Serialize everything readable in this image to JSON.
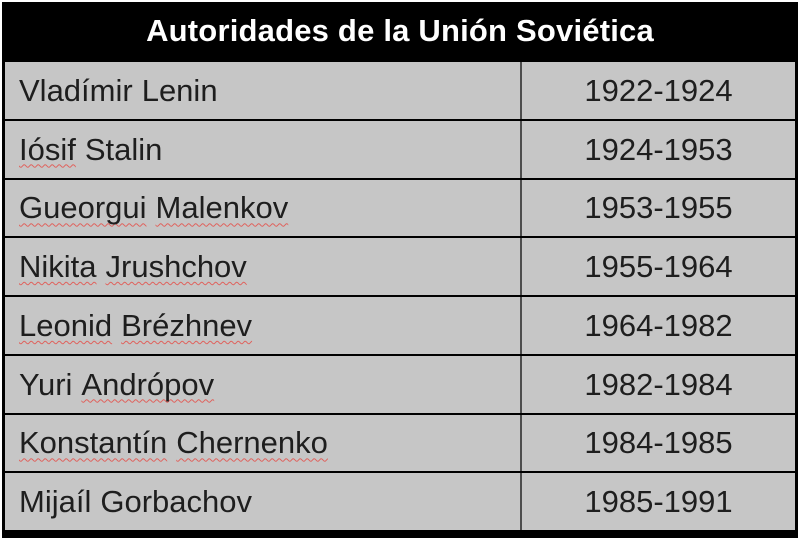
{
  "theme": {
    "page-bg": "#ffffff",
    "table-border": "#000000",
    "header-text": "#ffffff",
    "row-bg": "#c6c6c6",
    "cell-text": "#1e1e1e",
    "divider": "#4d4d4d",
    "squiggle": "#e0615c"
  },
  "table": {
    "title": "Autoridades de la Unión Soviética",
    "rows": [
      {
        "name_words": [
          {
            "text": "Vladímir",
            "misspelled": false
          },
          {
            "text": "Lenin",
            "misspelled": false
          }
        ],
        "years": "1922-1924"
      },
      {
        "name_words": [
          {
            "text": "Iósif",
            "misspelled": true
          },
          {
            "text": "Stalin",
            "misspelled": false
          }
        ],
        "years": "1924-1953"
      },
      {
        "name_words": [
          {
            "text": "Gueorgui",
            "misspelled": true
          },
          {
            "text": "Malenkov",
            "misspelled": true
          }
        ],
        "years": "1953-1955"
      },
      {
        "name_words": [
          {
            "text": "Nikita",
            "misspelled": true
          },
          {
            "text": "Jrushchov",
            "misspelled": true
          }
        ],
        "years": "1955-1964"
      },
      {
        "name_words": [
          {
            "text": "Leonid",
            "misspelled": true
          },
          {
            "text": "Brézhnev",
            "misspelled": true
          }
        ],
        "years": "1964-1982"
      },
      {
        "name_words": [
          {
            "text": "Yuri",
            "misspelled": false
          },
          {
            "text": "Andrópov",
            "misspelled": true
          }
        ],
        "years": "1982-1984"
      },
      {
        "name_words": [
          {
            "text": "Konstantín",
            "misspelled": true
          },
          {
            "text": "Chernenko",
            "misspelled": true
          }
        ],
        "years": "1984-1985"
      },
      {
        "name_words": [
          {
            "text": "Mijaíl",
            "misspelled": false
          },
          {
            "text": "Gorbachov",
            "misspelled": false
          }
        ],
        "years": "1985-1991"
      }
    ]
  }
}
